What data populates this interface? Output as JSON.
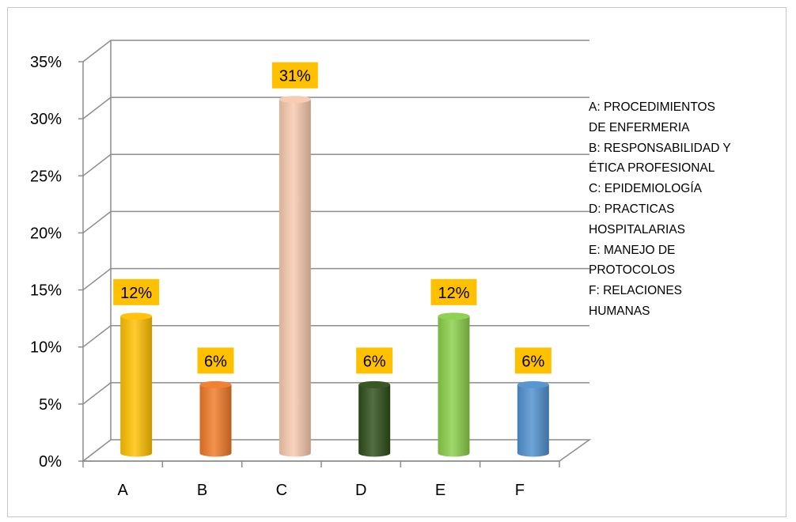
{
  "chart_data": {
    "type": "bar",
    "categories": [
      "A",
      "B",
      "C",
      "D",
      "E",
      "F"
    ],
    "values": [
      12,
      6,
      31,
      6,
      12,
      6
    ],
    "value_labels": [
      "12%",
      "6%",
      "31%",
      "6%",
      "12%",
      "6%"
    ],
    "y_ticks": [
      "0%",
      "5%",
      "10%",
      "15%",
      "20%",
      "25%",
      "30%",
      "35%"
    ],
    "ylim": [
      0,
      35
    ],
    "grid": true,
    "legend_position": "right",
    "legend_lines": [
      "A: PROCEDIMIENTOS",
      "DE ENFERMERIA",
      "B: RESPONSABILIDAD Y",
      "ÉTICA PROFESIONAL",
      "C: EPIDEMIOLOGÍA",
      "D: PRACTICAS",
      "HOSPITALARIAS",
      "E: MANEJO DE",
      "PROTOCOLOS",
      "F: RELACIONES",
      "HUMANAS"
    ],
    "colors": [
      "#FFC000",
      "#F07A28",
      "#F8C9AE",
      "#2E4E1A",
      "#8ACF49",
      "#4F90D0"
    ],
    "label_background": "#FFC000"
  }
}
